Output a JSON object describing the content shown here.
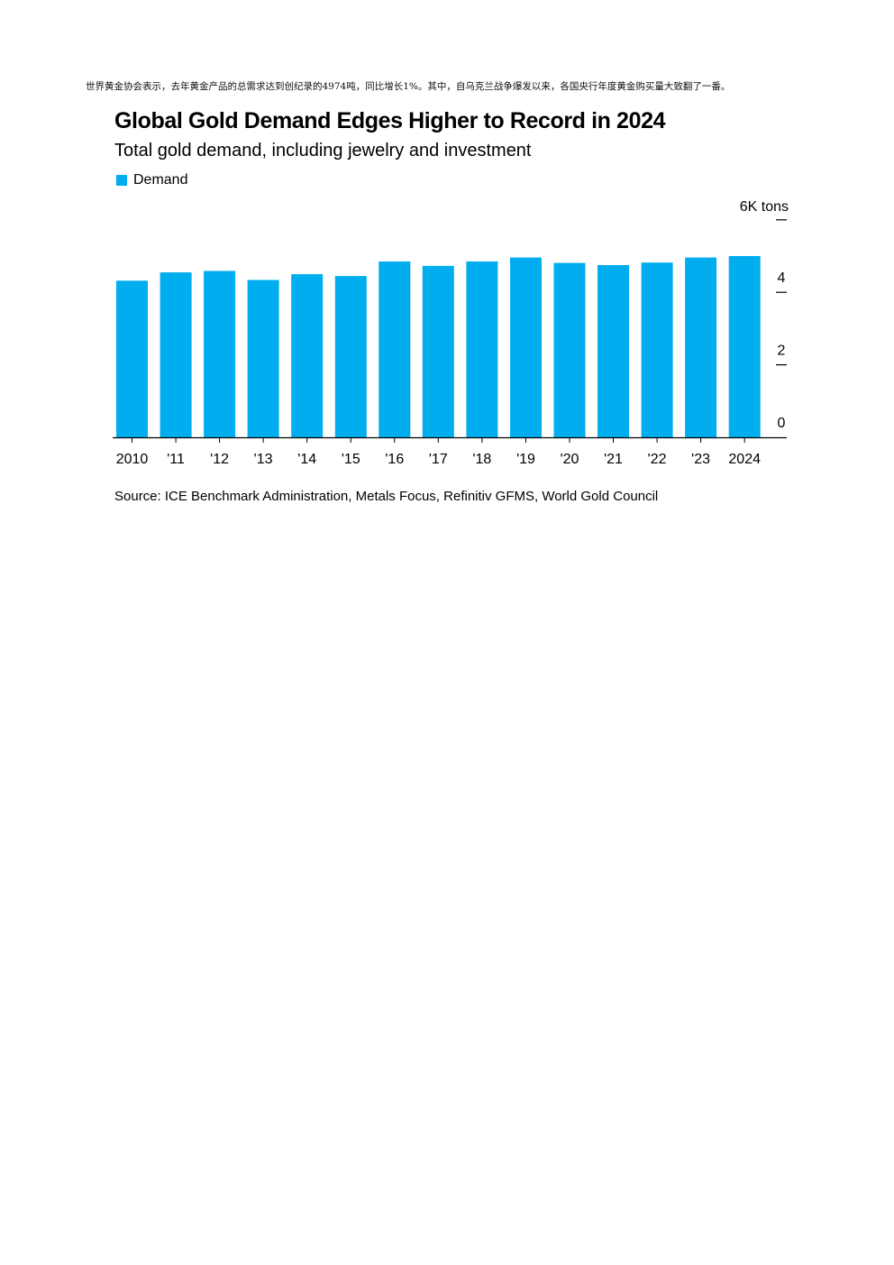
{
  "intro_text": "世界黄金协会表示，去年黄金产品的总需求达到创纪录的4974吨，同比增长1%。其中，自乌克兰战争爆发以来，各国央行年度黄金购买量大致翻了一番。",
  "chart_data": {
    "type": "bar",
    "title": "Global Gold Demand Edges Higher to Record in 2024",
    "subtitle": "Total gold demand, including jewelry and investment",
    "categories": [
      "2010",
      "'11",
      "'12",
      "'13",
      "'14",
      "'15",
      "'16",
      "'17",
      "'18",
      "'19",
      "'20",
      "'21",
      "'22",
      "'23",
      "2024"
    ],
    "series": [
      {
        "name": "Demand",
        "color": "#00aeef",
        "values": [
          4.32,
          4.55,
          4.59,
          4.34,
          4.5,
          4.45,
          4.85,
          4.73,
          4.85,
          4.96,
          4.81,
          4.75,
          4.82,
          4.96,
          5.0
        ]
      }
    ],
    "y_unit_label": "6K tons",
    "yticks": [
      "0",
      "2",
      "4"
    ],
    "ylim": [
      0,
      6
    ],
    "legend_position": "top-left",
    "grid": false,
    "source": "Source: ICE Benchmark Administration, Metals Focus, Refinitiv GFMS, World Gold Council"
  }
}
